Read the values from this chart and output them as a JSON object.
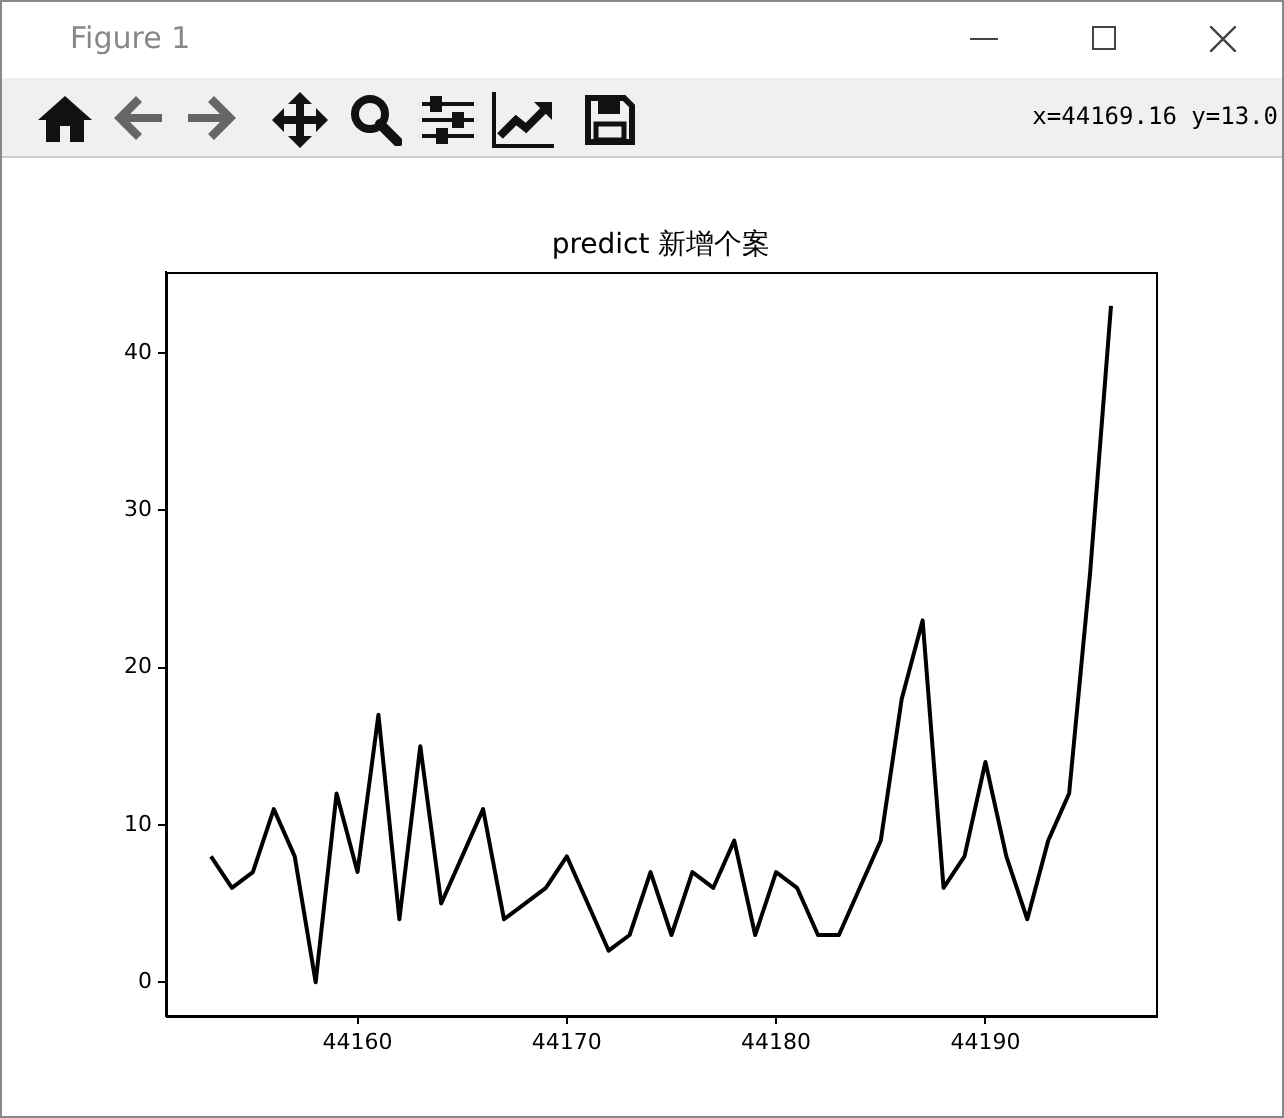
{
  "chart_data": {
    "type": "line",
    "title": "predict 新增个案",
    "annotations": [
      "Figure 1",
      "x=44169.16 y=13.0"
    ],
    "x": [
      44153,
      44154,
      44155,
      44156,
      44157,
      44158,
      44159,
      44160,
      44161,
      44162,
      44163,
      44164,
      44165,
      44166,
      44167,
      44168,
      44169,
      44170,
      44171,
      44172,
      44173,
      44174,
      44175,
      44176,
      44177,
      44178,
      44179,
      44180,
      44181,
      44182,
      44183,
      44184,
      44185,
      44186,
      44187,
      44188,
      44189,
      44190,
      44191,
      44192,
      44193,
      44194,
      44195,
      44196
    ],
    "series": [
      {
        "color": "#000000",
        "values": [
          8,
          6,
          7,
          11,
          8,
          0,
          12,
          7,
          17,
          4,
          15,
          5,
          8,
          11,
          4,
          5,
          6,
          8,
          5,
          2,
          3,
          7,
          3,
          7,
          6,
          9,
          3,
          7,
          6,
          3,
          3,
          6,
          9,
          18,
          23,
          6,
          8,
          14,
          8,
          4,
          9,
          12,
          26,
          43
        ]
      }
    ],
    "xlim": [
      44150.85,
      44198.15
    ],
    "xticks": [
      44160,
      44170,
      44180,
      44190
    ],
    "ylim": [
      -2.15,
      45.15
    ],
    "yticks": [
      0,
      10,
      20,
      30,
      40
    ],
    "grid": false,
    "legend": false,
    "marker": "none",
    "line_style": "solid"
  }
}
